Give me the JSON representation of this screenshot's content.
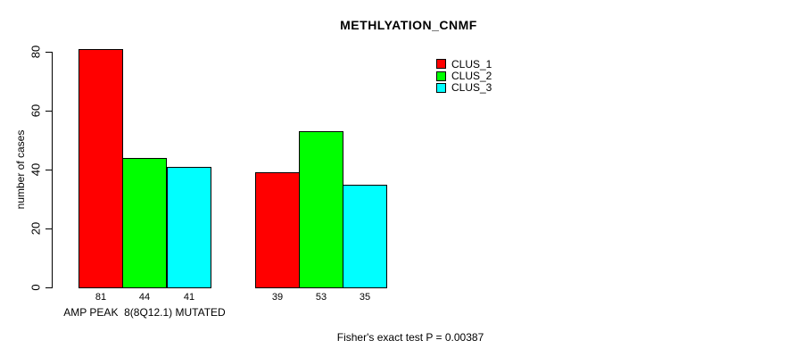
{
  "chart_data": {
    "type": "bar",
    "title": "METHLYATION_CNMF",
    "ylabel": "number of cases",
    "xlabel": "",
    "ylim": [
      0,
      80
    ],
    "yticks": [
      0,
      20,
      40,
      60,
      80
    ],
    "grid": false,
    "legend_position": "top-right",
    "categories": [
      "AMP PEAK  8(8Q12.1) MUTATED",
      ""
    ],
    "series": [
      {
        "name": "CLUS_1",
        "color": "#ff0000",
        "values": [
          81,
          39
        ]
      },
      {
        "name": "CLUS_2",
        "color": "#00ff00",
        "values": [
          44,
          53
        ]
      },
      {
        "name": "CLUS_3",
        "color": "#00ffff",
        "values": [
          41,
          35
        ]
      }
    ],
    "annotation": "Fisher's exact test P = 0.00387"
  },
  "colors": {
    "background": "#ffffff",
    "text": "#000000",
    "bar_border": "#000000"
  }
}
